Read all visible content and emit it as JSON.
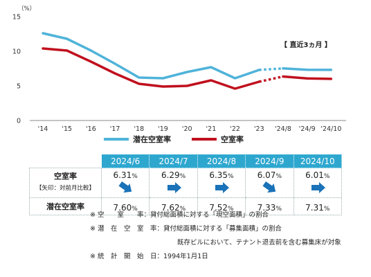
{
  "chart_data": {
    "type": "line",
    "unit_label": "（%）",
    "y_ticks": [
      "15",
      "10",
      "5",
      "0"
    ],
    "ylim": [
      0,
      15
    ],
    "x": [
      "'14",
      "'15",
      "'16",
      "'17",
      "'18",
      "'19",
      "'20",
      "'21",
      "'22",
      "'23",
      "'24/8",
      "'24/9",
      "'24/10"
    ],
    "annual_count": 10,
    "series": [
      {
        "name": "潜在空室率",
        "color": "#4fb3d9",
        "values": [
          12.6,
          11.8,
          10.1,
          8.2,
          6.2,
          6.1,
          7.0,
          7.7,
          6.1,
          7.3,
          7.52,
          7.33,
          7.31
        ]
      },
      {
        "name": "空室率",
        "color": "#c0101e",
        "values": [
          10.4,
          10.1,
          8.5,
          6.8,
          5.3,
          4.9,
          5.0,
          5.8,
          4.6,
          5.6,
          6.35,
          6.07,
          6.01
        ]
      }
    ],
    "recent_label": "【 直近3ヵ月 】"
  },
  "table": {
    "months": [
      "2024/6",
      "2024/7",
      "2024/8",
      "2024/9",
      "2024/10"
    ],
    "vacancy_label": "空室率",
    "vacancy_sub": "【矢印：対前月比較】",
    "vacancy_values": [
      "6.31",
      "6.29",
      "6.35",
      "6.07",
      "6.01"
    ],
    "arrows": [
      "down",
      "right",
      "right",
      "down",
      "right"
    ],
    "potential_label": "潜在空室率",
    "potential_values": [
      "7.60",
      "7.62",
      "7.52",
      "7.33",
      "7.31"
    ],
    "pct": "%"
  },
  "notes": {
    "n1_label": "※ 空　　室　　率：",
    "n1_text": "貸付総面積に対する「現空面積」の割合",
    "n2_label": "※ 潜　在　空　室　率：",
    "n2_text": "貸付総面積に対する「募集面積」の割合",
    "n2_text2": "既存ビルにおいて、テナント退去前を含む募集床が対象",
    "n3_label": "※ 統　計　開　始　日：",
    "n3_text": "1994年1月1日"
  },
  "colors": {
    "blue": "#4fb3d9",
    "red": "#c0101e",
    "header": "#2ea7cf",
    "arrow": "#1a72b8"
  }
}
